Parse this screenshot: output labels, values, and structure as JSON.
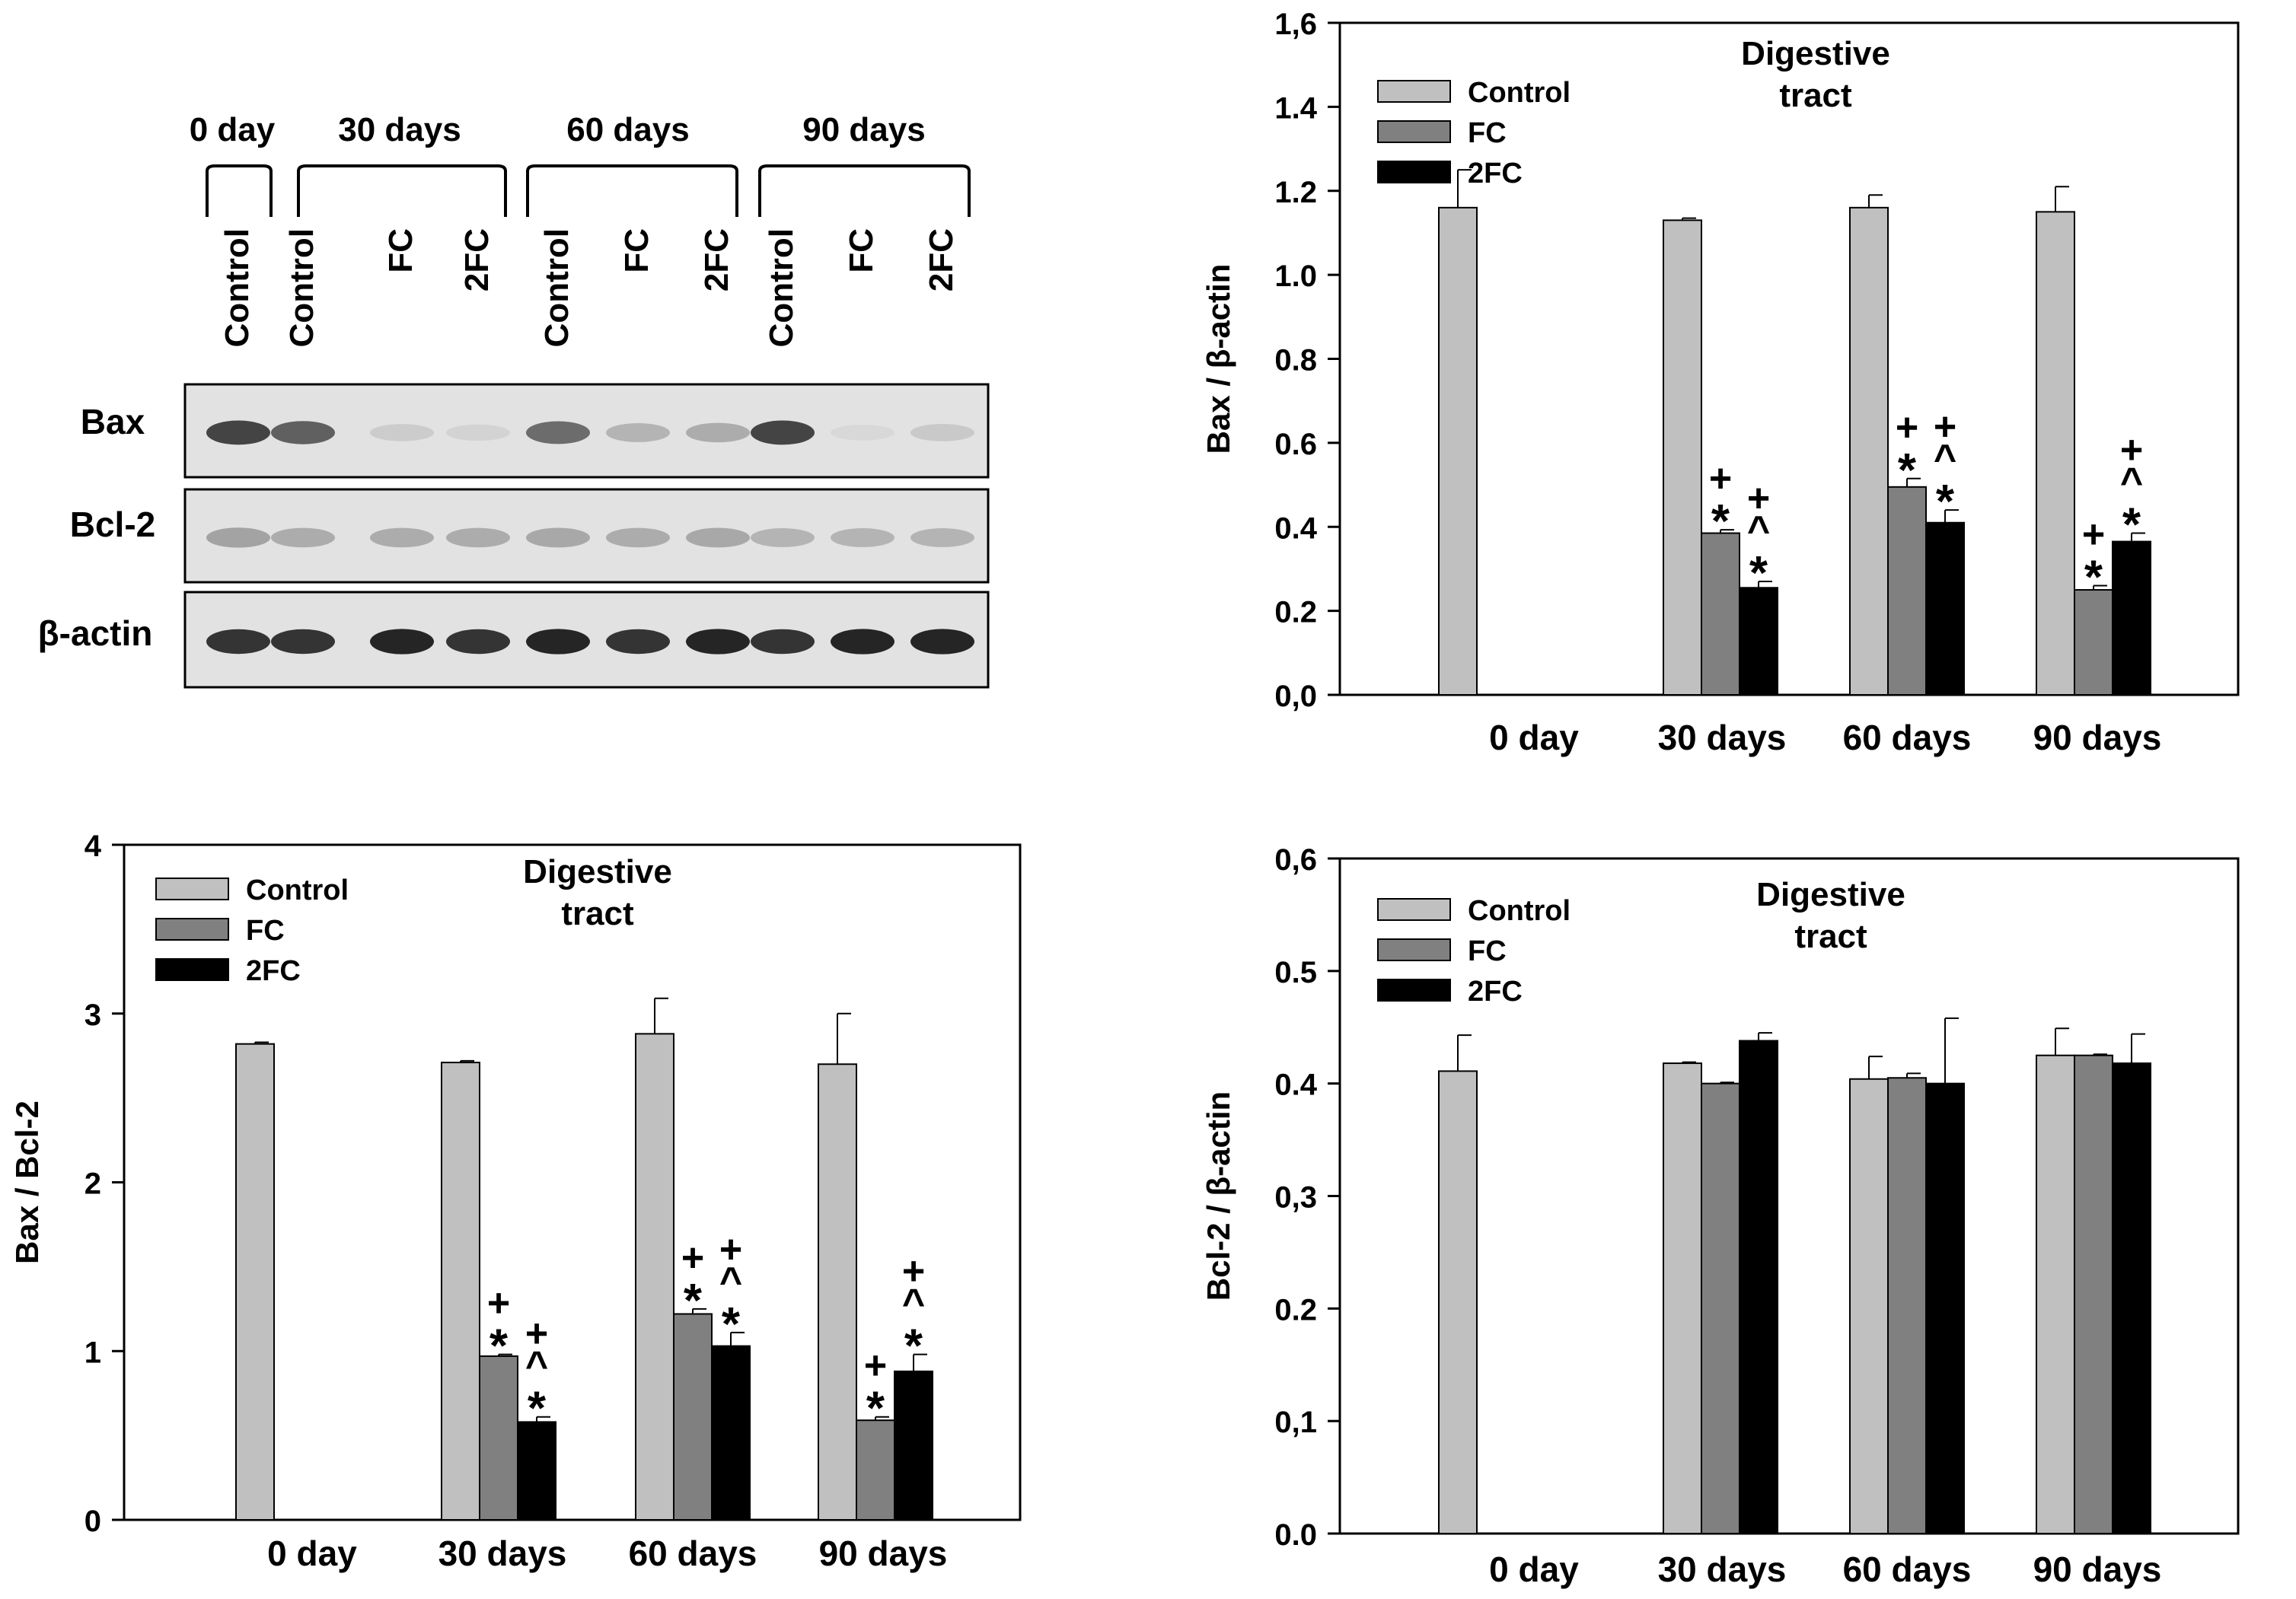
{
  "blot": {
    "groups": [
      {
        "label": "0 day",
        "lanes": [
          "Control"
        ]
      },
      {
        "label": "30 days",
        "lanes": [
          "Control",
          "FC",
          "2FC"
        ]
      },
      {
        "label": "60 days",
        "lanes": [
          "Control",
          "FC",
          "2FC"
        ]
      },
      {
        "label": "90 days",
        "lanes": [
          "Control",
          "FC",
          "2FC"
        ]
      }
    ],
    "rows": [
      {
        "label": "Bax",
        "intensity": [
          0.85,
          0.75,
          0.18,
          0.1,
          0.7,
          0.35,
          0.4,
          0.85,
          0.05,
          0.2
        ]
      },
      {
        "label": "Bcl-2",
        "intensity": [
          0.45,
          0.4,
          0.4,
          0.4,
          0.42,
          0.4,
          0.42,
          0.35,
          0.35,
          0.35
        ]
      },
      {
        "label": "β-actin",
        "intensity": [
          0.9,
          0.9,
          0.95,
          0.9,
          0.95,
          0.9,
          0.95,
          0.9,
          0.95,
          0.95
        ]
      }
    ]
  },
  "legend": {
    "series": [
      "Control",
      "FC",
      "2FC"
    ]
  },
  "colors": {
    "Control": "#c0c0c0",
    "FC": "#808080",
    "2FC": "#000000"
  },
  "chart_data": [
    {
      "id": "bax",
      "type": "bar",
      "title": "Digestive\ntract",
      "ylabel": "Bax / β-actin",
      "ylim": [
        0,
        1.6
      ],
      "yticks": [
        "0,0",
        "0.2",
        "0.4",
        "0.6",
        "0.8",
        "1.0",
        "1.2",
        "1.4",
        "1,6"
      ],
      "categories": [
        "0 day",
        "30 days",
        "60 days",
        "90 days"
      ],
      "series": [
        {
          "name": "Control",
          "values": [
            1.16,
            1.13,
            1.16,
            1.15
          ],
          "errors": [
            0.09,
            0.005,
            0.03,
            0.06
          ]
        },
        {
          "name": "FC",
          "values": [
            null,
            0.385,
            0.495,
            0.25
          ],
          "errors": [
            null,
            0.008,
            0.02,
            0.01
          ]
        },
        {
          "name": "2FC",
          "values": [
            null,
            0.255,
            0.41,
            0.365
          ],
          "errors": [
            null,
            0.015,
            0.03,
            0.02
          ]
        }
      ],
      "annotations": [
        {
          "category": "30 days",
          "series": "FC",
          "text": "+\n*"
        },
        {
          "category": "30 days",
          "series": "2FC",
          "text": "+\n^\n*"
        },
        {
          "category": "60 days",
          "series": "FC",
          "text": "+\n*"
        },
        {
          "category": "60 days",
          "series": "2FC",
          "text": "+\n^\n*"
        },
        {
          "category": "90 days",
          "series": "FC",
          "text": "+\n*"
        },
        {
          "category": "90 days",
          "series": "2FC",
          "text": "+\n^\n*"
        }
      ],
      "legend_position": "top-left"
    },
    {
      "id": "ratio",
      "type": "bar",
      "title": "Digestive\ntract",
      "ylabel": "Bax / Bcl-2",
      "ylim": [
        0,
        4
      ],
      "yticks": [
        "0",
        "1",
        "2",
        "3",
        "4"
      ],
      "categories": [
        "0 day",
        "30 days",
        "60 days",
        "90 days"
      ],
      "series": [
        {
          "name": "Control",
          "values": [
            2.82,
            2.71,
            2.88,
            2.7
          ],
          "errors": [
            0.01,
            0.01,
            0.21,
            0.3
          ]
        },
        {
          "name": "FC",
          "values": [
            null,
            0.97,
            1.22,
            0.59
          ],
          "errors": [
            null,
            0.01,
            0.03,
            0.02
          ]
        },
        {
          "name": "2FC",
          "values": [
            null,
            0.58,
            1.03,
            0.88
          ],
          "errors": [
            null,
            0.03,
            0.08,
            0.1
          ]
        }
      ],
      "annotations": [
        {
          "category": "30 days",
          "series": "FC",
          "text": "+\n*"
        },
        {
          "category": "30 days",
          "series": "2FC",
          "text": "+\n^\n*"
        },
        {
          "category": "60 days",
          "series": "FC",
          "text": "+\n*"
        },
        {
          "category": "60 days",
          "series": "2FC",
          "text": "+\n^\n*"
        },
        {
          "category": "90 days",
          "series": "FC",
          "text": "+\n*"
        },
        {
          "category": "90 days",
          "series": "2FC",
          "text": "+\n^\n*"
        }
      ],
      "legend_position": "top-left"
    },
    {
      "id": "bcl2",
      "type": "bar",
      "title": "Digestive\ntract",
      "ylabel": "Bcl-2 / β-actin",
      "ylim": [
        0,
        0.6
      ],
      "yticks": [
        "0.0",
        "0,1",
        "0.2",
        "0,3",
        "0.4",
        "0.5",
        "0,6"
      ],
      "categories": [
        "0 day",
        "30 days",
        "60 days",
        "90 days"
      ],
      "series": [
        {
          "name": "Control",
          "values": [
            0.411,
            0.418,
            0.404,
            0.425
          ],
          "errors": [
            0.032,
            0.001,
            0.02,
            0.024
          ]
        },
        {
          "name": "FC",
          "values": [
            null,
            0.4,
            0.405,
            0.425
          ],
          "errors": [
            null,
            0.001,
            0.004,
            0.001
          ]
        },
        {
          "name": "2FC",
          "values": [
            null,
            0.438,
            0.4,
            0.418
          ],
          "errors": [
            null,
            0.007,
            0.058,
            0.026
          ]
        }
      ],
      "annotations": [],
      "legend_position": "top-left"
    }
  ]
}
